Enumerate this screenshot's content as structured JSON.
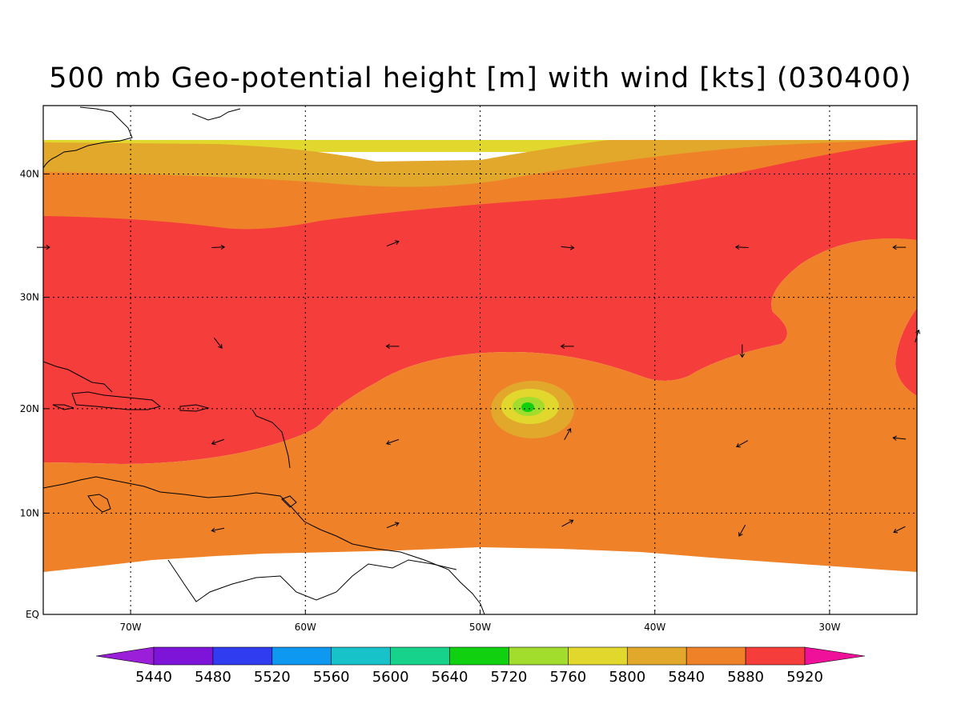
{
  "title": "500 mb Geo-potential height [m] with wind [kts] (030400)",
  "map": {
    "lon_range": [
      -75,
      -25
    ],
    "lat_range": [
      0,
      45
    ],
    "lon_ticks": [
      {
        "value": -70,
        "label": "70W"
      },
      {
        "value": -60,
        "label": "60W"
      },
      {
        "value": -50,
        "label": "50W"
      },
      {
        "value": -40,
        "label": "40W"
      },
      {
        "value": -30,
        "label": "30W"
      }
    ],
    "lat_ticks": [
      {
        "value": 0,
        "label": "EQ"
      },
      {
        "value": 10,
        "label": "10N"
      },
      {
        "value": 20,
        "label": "20N"
      },
      {
        "value": 30,
        "label": "30N"
      },
      {
        "value": 40,
        "label": "40N"
      }
    ],
    "grid": "dotted"
  },
  "colorbar": {
    "labels": [
      "5440",
      "5480",
      "5520",
      "5560",
      "5600",
      "5640",
      "5720",
      "5760",
      "5800",
      "5840",
      "5880",
      "5920"
    ],
    "colors": [
      "#9b1fd8",
      "#7d14d8",
      "#2f3cf0",
      "#0f98f0",
      "#17c3c8",
      "#16d28a",
      "#10d010",
      "#a2dc2c",
      "#e2d72c",
      "#e2a82c",
      "#ef8229",
      "#f53d3c",
      "#f0119b"
    ],
    "low_arrow_color": "#9b1fd8",
    "high_arrow_color": "#f0119b"
  },
  "field_colors": {
    "c5800": "#e2d72c",
    "c5840": "#e2a82c",
    "c5880": "#ef8229",
    "c5920": "#f53d3c",
    "c5760": "#a2dc2c",
    "c5720": "#10d010",
    "c5640": "#16d28a"
  },
  "wind_vectors": [
    {
      "lon": -75,
      "lat": 34.2,
      "u": 1.0,
      "v": 0.0
    },
    {
      "lon": -65,
      "lat": 34.2,
      "u": 1.0,
      "v": 0.05
    },
    {
      "lon": -55,
      "lat": 34.5,
      "u": 1.0,
      "v": 0.4
    },
    {
      "lon": -45,
      "lat": 34.2,
      "u": 1.0,
      "v": -0.1
    },
    {
      "lon": -35,
      "lat": 34.2,
      "u": -1.0,
      "v": 0.05
    },
    {
      "lon": -26,
      "lat": 34.2,
      "u": -1.0,
      "v": 0.0
    },
    {
      "lon": -65,
      "lat": 26.0,
      "u": 0.6,
      "v": -0.8
    },
    {
      "lon": -55,
      "lat": 25.7,
      "u": -1.0,
      "v": 0.0
    },
    {
      "lon": -45,
      "lat": 25.7,
      "u": -1.0,
      "v": 0.0
    },
    {
      "lon": -35,
      "lat": 25.3,
      "u": 0.0,
      "v": -1.0
    },
    {
      "lon": -25,
      "lat": 26.6,
      "u": 0.3,
      "v": 1.0
    },
    {
      "lon": -65,
      "lat": 16.9,
      "u": -1.0,
      "v": -0.35
    },
    {
      "lon": -55,
      "lat": 16.9,
      "u": -1.0,
      "v": -0.35
    },
    {
      "lon": -45,
      "lat": 17.6,
      "u": 0.5,
      "v": 0.9
    },
    {
      "lon": -35,
      "lat": 16.7,
      "u": -0.9,
      "v": -0.5
    },
    {
      "lon": -26,
      "lat": 17.2,
      "u": -1.0,
      "v": 0.1
    },
    {
      "lon": -65,
      "lat": 8.4,
      "u": -1.0,
      "v": -0.2
    },
    {
      "lon": -55,
      "lat": 8.8,
      "u": 1.0,
      "v": 0.4
    },
    {
      "lon": -45,
      "lat": 9.0,
      "u": 0.9,
      "v": 0.5
    },
    {
      "lon": -35,
      "lat": 8.3,
      "u": -0.5,
      "v": -0.9
    },
    {
      "lon": -26,
      "lat": 8.4,
      "u": -1.0,
      "v": -0.5
    }
  ]
}
